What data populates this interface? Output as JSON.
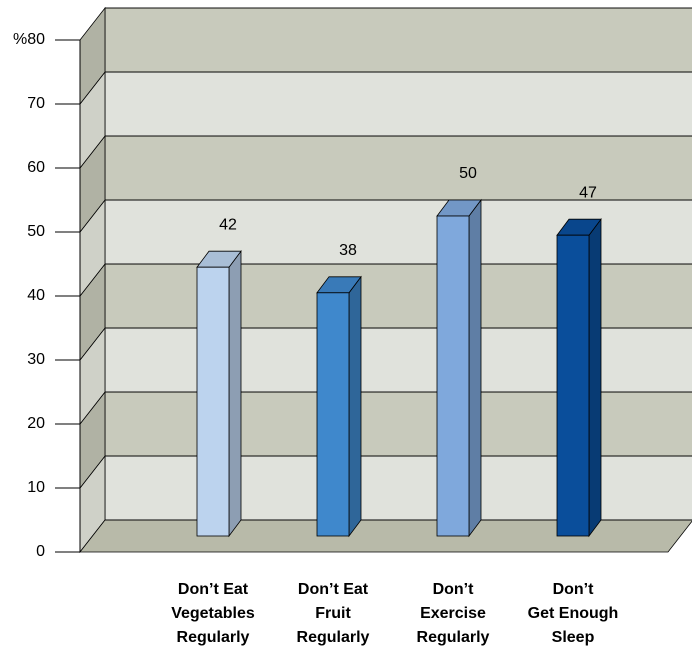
{
  "chart_data": {
    "type": "bar3d",
    "categories": [
      [
        "Don’t Eat",
        "Vegetables",
        "Regularly"
      ],
      [
        "Don’t Eat",
        "Fruit",
        "Regularly"
      ],
      [
        "Don’t",
        "Exercise",
        "Regularly"
      ],
      [
        "Don’t",
        "Get Enough",
        "Sleep"
      ]
    ],
    "values": [
      42,
      38,
      50,
      47
    ],
    "colors": [
      "#bcd3ee",
      "#3f88cc",
      "#7fa8dc",
      "#0a4e9b"
    ],
    "ylim": [
      0,
      80
    ],
    "yticks": [
      0,
      10,
      20,
      30,
      40,
      50,
      60,
      70,
      {
        "value": 80,
        "label": "%80"
      }
    ],
    "grid": true
  }
}
